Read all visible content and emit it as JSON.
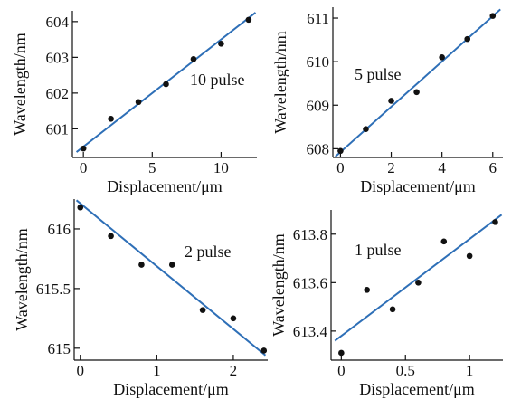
{
  "chart_data": [
    {
      "type": "scatter",
      "annotation": "10 pulse",
      "xlabel": "Displacement/μm",
      "ylabel": "Wavelength/nm",
      "xlim": [
        -0.8,
        12.6
      ],
      "ylim": [
        600.2,
        604.3
      ],
      "xticks": [
        0,
        5,
        10
      ],
      "yticks": [
        601,
        602,
        603,
        604
      ],
      "points": [
        {
          "x": 0,
          "y": 600.45
        },
        {
          "x": 2,
          "y": 601.28
        },
        {
          "x": 4,
          "y": 601.75
        },
        {
          "x": 6,
          "y": 602.25
        },
        {
          "x": 8,
          "y": 602.95
        },
        {
          "x": 10,
          "y": 603.38
        },
        {
          "x": 12,
          "y": 604.05
        }
      ],
      "fit": {
        "x": [
          -0.5,
          12.5
        ],
        "y": [
          600.35,
          604.25
        ]
      }
    },
    {
      "type": "scatter",
      "annotation": "5 pulse",
      "xlabel": "Displacement/μm",
      "ylabel": "Wavelength/nm",
      "xlim": [
        -0.3,
        6.4
      ],
      "ylim": [
        607.8,
        611.25
      ],
      "xticks": [
        0,
        2,
        4,
        6
      ],
      "yticks": [
        608,
        609,
        610,
        611
      ],
      "points": [
        {
          "x": 0,
          "y": 607.95
        },
        {
          "x": 1,
          "y": 608.45
        },
        {
          "x": 2,
          "y": 609.1
        },
        {
          "x": 3,
          "y": 609.3
        },
        {
          "x": 4,
          "y": 610.1
        },
        {
          "x": 5,
          "y": 610.52
        },
        {
          "x": 6,
          "y": 611.05
        }
      ],
      "fit": {
        "x": [
          -0.2,
          6.3
        ],
        "y": [
          607.82,
          611.2
        ]
      }
    },
    {
      "type": "scatter",
      "annotation": "2 pulse",
      "xlabel": "Displacement/μm",
      "ylabel": "Wavelength/nm",
      "xlim": [
        -0.08,
        2.45
      ],
      "ylim": [
        614.9,
        616.25
      ],
      "xticks": [
        0,
        1,
        2
      ],
      "yticks": [
        615,
        615.5,
        616
      ],
      "yticklabels": [
        "615",
        "615.5",
        "616"
      ],
      "points": [
        {
          "x": 0,
          "y": 616.18
        },
        {
          "x": 0.4,
          "y": 615.94
        },
        {
          "x": 0.8,
          "y": 615.7
        },
        {
          "x": 1.2,
          "y": 615.7
        },
        {
          "x": 1.6,
          "y": 615.32
        },
        {
          "x": 2.0,
          "y": 615.25
        },
        {
          "x": 2.4,
          "y": 614.98
        }
      ],
      "fit": {
        "x": [
          -0.05,
          2.42
        ],
        "y": [
          616.24,
          614.94
        ]
      }
    },
    {
      "type": "scatter",
      "annotation": "1 pulse",
      "xlabel": "Displacement/μm",
      "ylabel": "Wavelength/nm",
      "xlim": [
        -0.08,
        1.26
      ],
      "ylim": [
        613.28,
        613.9
      ],
      "xticks": [
        0,
        0.5,
        1
      ],
      "xticklabels": [
        "0",
        "0.5",
        "1"
      ],
      "yticks": [
        613.4,
        613.6,
        613.8
      ],
      "points": [
        {
          "x": 0,
          "y": 613.31
        },
        {
          "x": 0.2,
          "y": 613.57
        },
        {
          "x": 0.4,
          "y": 613.49
        },
        {
          "x": 0.6,
          "y": 613.6
        },
        {
          "x": 0.8,
          "y": 613.77
        },
        {
          "x": 1.0,
          "y": 613.71
        },
        {
          "x": 1.2,
          "y": 613.85
        }
      ],
      "fit": {
        "x": [
          -0.05,
          1.25
        ],
        "y": [
          613.36,
          613.88
        ]
      }
    }
  ],
  "colors": {
    "fit_line": "#2e6fb7",
    "point": "#111111",
    "axis": "#111111"
  }
}
